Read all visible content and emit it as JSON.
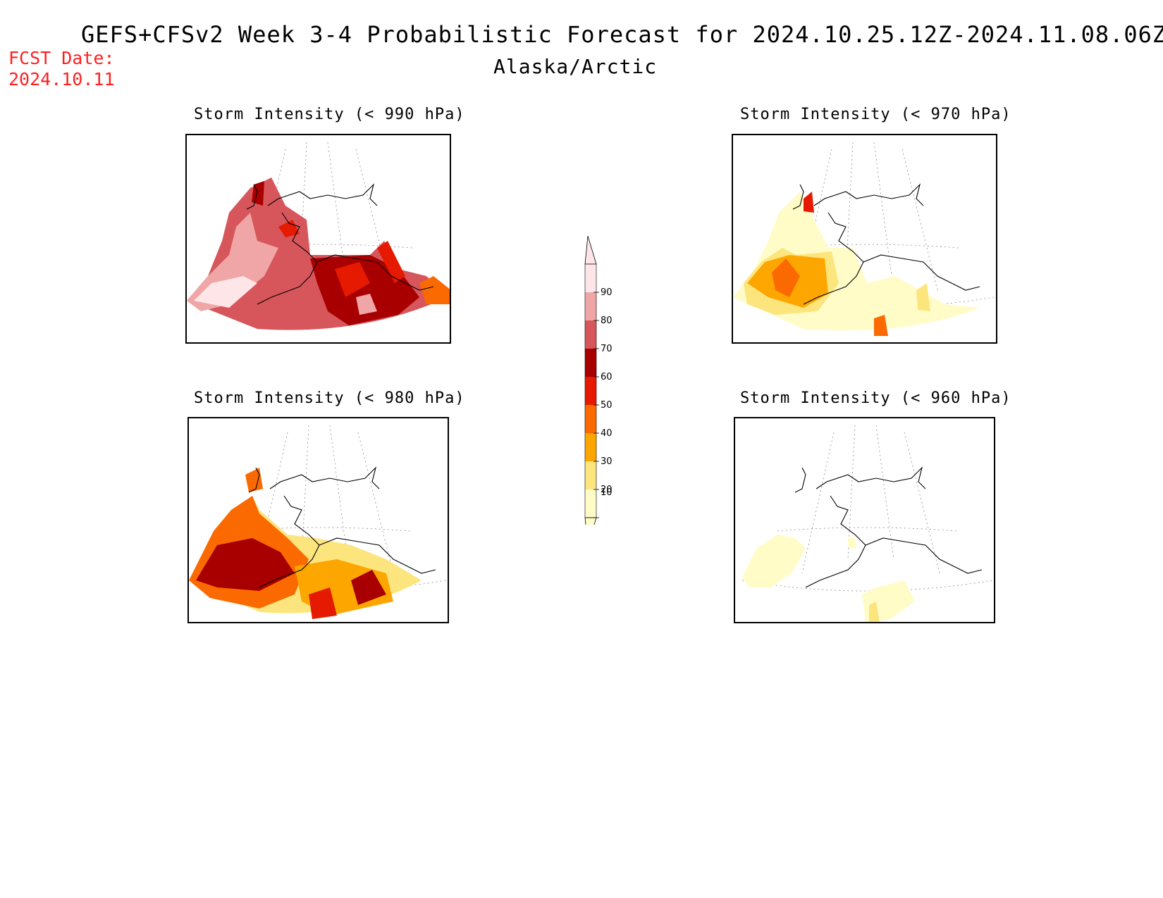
{
  "header": {
    "title": "GEFS+CFSv2 Week 3-4 Probabilistic Forecast for 2024.10.25.12Z-2024.11.08.06Z",
    "subtitle": "Alaska/Arctic",
    "fcst_label": "FCST Date:",
    "fcst_date": "2024.10.11"
  },
  "panels": [
    {
      "title": "Storm Intensity (< 990 hPa)",
      "level": "990"
    },
    {
      "title": "Storm Intensity (< 970 hPa)",
      "level": "970"
    },
    {
      "title": "Storm Intensity (< 980 hPa)",
      "level": "980"
    },
    {
      "title": "Storm Intensity (< 960 hPa)",
      "level": "960"
    }
  ],
  "colorbar": {
    "ticks": [
      "10",
      "20",
      "30",
      "40",
      "50",
      "60",
      "70",
      "80",
      "90"
    ],
    "colors": [
      "#fffcc8",
      "#fde57e",
      "#fda600",
      "#fb6a00",
      "#e51a00",
      "#a80000",
      "#d6565b",
      "#f0a6a6",
      "#fde5e8"
    ]
  }
}
